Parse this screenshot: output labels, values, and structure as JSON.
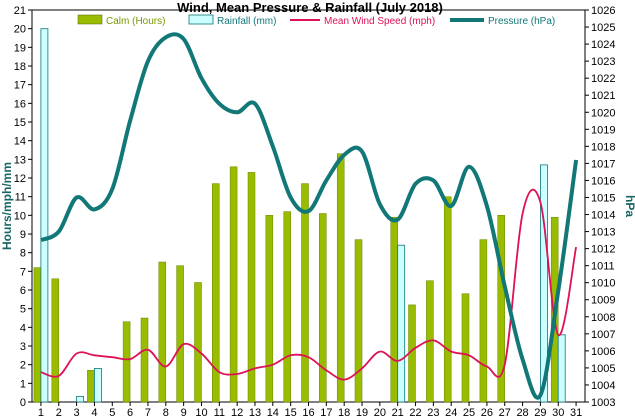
{
  "chart_data": {
    "type": "bar",
    "title": "Wind, Mean Pressure & Rainfall (July 2018)",
    "ylabel_left": "Hours/mph/mm",
    "ylabel_right": "hPa",
    "ylim_left": [
      0,
      21
    ],
    "ylim_right": [
      1003,
      1026
    ],
    "grid": false,
    "legend_position": "top",
    "categories": [
      "1",
      "2",
      "3",
      "4",
      "5",
      "6",
      "7",
      "8",
      "9",
      "10",
      "11",
      "12",
      "13",
      "14",
      "15",
      "16",
      "17",
      "18",
      "19",
      "20",
      "21",
      "22",
      "23",
      "24",
      "25",
      "26",
      "27",
      "28",
      "29",
      "30",
      "31"
    ],
    "series": [
      {
        "name": "Calm (Hours)",
        "kind": "bar",
        "color": "#99bb00",
        "values": [
          7.2,
          6.6,
          0,
          1.7,
          0,
          4.3,
          4.5,
          7.5,
          7.3,
          6.4,
          11.7,
          12.6,
          12.3,
          10.0,
          10.2,
          11.7,
          10.1,
          13.3,
          8.7,
          0,
          9.9,
          5.2,
          6.5,
          11.0,
          5.8,
          8.7,
          10.0,
          0,
          0,
          9.9,
          0
        ]
      },
      {
        "name": "Rainfall (mm)",
        "kind": "bar",
        "color": "#ccffff",
        "values": [
          20.0,
          0,
          0.3,
          1.8,
          0,
          0,
          0,
          0,
          0,
          0,
          0,
          0,
          0,
          0,
          0,
          0,
          0,
          0,
          0,
          0,
          8.4,
          0,
          0,
          0,
          0,
          0,
          0,
          0,
          12.7,
          3.6,
          0
        ]
      },
      {
        "name": "Mean Wind Speed (mph)",
        "kind": "line",
        "color": "#dd1155",
        "values": [
          1.6,
          1.4,
          2.6,
          2.5,
          2.4,
          2.3,
          2.8,
          1.9,
          3.1,
          2.6,
          1.6,
          1.5,
          1.8,
          2.0,
          2.5,
          2.4,
          1.7,
          1.2,
          1.8,
          2.7,
          2.2,
          2.9,
          3.3,
          2.7,
          2.5,
          1.9,
          2.0,
          10.1,
          10.7,
          3.6,
          8.3
        ]
      },
      {
        "name": "Pressure (hPa)",
        "kind": "line",
        "axis": "right",
        "color": "#117777",
        "values": [
          1012.5,
          1013.0,
          1015.0,
          1014.3,
          1015.5,
          1019.5,
          1023.0,
          1024.4,
          1024.3,
          1022.0,
          1020.5,
          1020.0,
          1020.5,
          1018.0,
          1015.0,
          1014.2,
          1016.0,
          1017.5,
          1017.7,
          1014.6,
          1013.7,
          1015.8,
          1016.0,
          1014.5,
          1016.8,
          1014.5,
          1009.8,
          1005.5,
          1003.4,
          1009.5,
          1017.2
        ]
      }
    ],
    "ticks_left": [
      "0",
      "1",
      "2",
      "3",
      "4",
      "5",
      "6",
      "7",
      "8",
      "9",
      "10",
      "11",
      "12",
      "13",
      "14",
      "15",
      "16",
      "17",
      "18",
      "19",
      "20",
      "21"
    ],
    "ticks_right": [
      "1003",
      "1004",
      "1005",
      "1006",
      "1007",
      "1008",
      "1009",
      "1010",
      "1011",
      "1012",
      "1013",
      "1014",
      "1015",
      "1016",
      "1017",
      "1018",
      "1019",
      "1020",
      "1021",
      "1022",
      "1023",
      "1024",
      "1025",
      "1026"
    ]
  }
}
